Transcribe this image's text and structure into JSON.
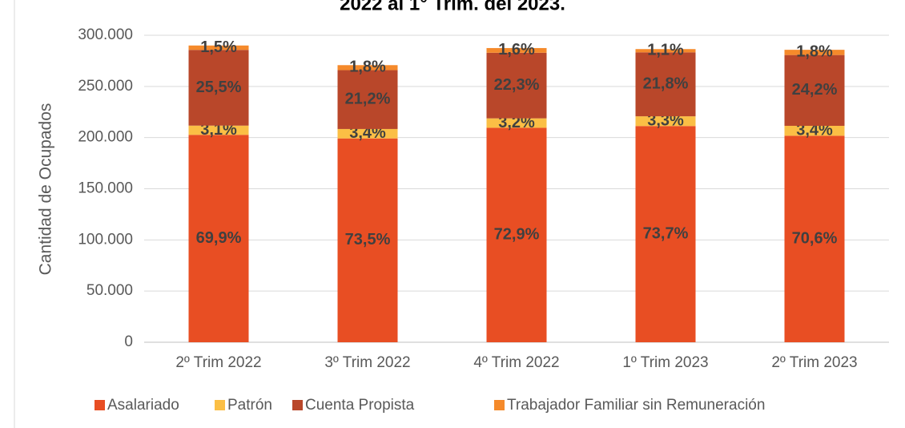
{
  "chart_data": {
    "type": "stacked_bar",
    "title": "2022 al 1° Trim. del 2023.",
    "y_label": "Cantidad de Ocupados",
    "categories": [
      "2º Trim 2022",
      "3º Trim 2022",
      "4º Trim 2022",
      "1º Trim 2023",
      "2º Trim 2023"
    ],
    "series": [
      {
        "name": "Asalariado",
        "color": "#e84e23",
        "values": [
          202700,
          199200,
          209600,
          211300,
          201800
        ],
        "value_labels": [
          "69,9%",
          "73,5%",
          "72,9%",
          "73,7%",
          "70,6%"
        ]
      },
      {
        "name": "Patrón",
        "color": "#fbbf45",
        "values": [
          9000,
          9200,
          9200,
          9500,
          9700
        ],
        "value_labels": [
          "3,1%",
          "3,4%",
          "3,2%",
          "3,3%",
          "3,4%"
        ]
      },
      {
        "name": "Cuenta Propista",
        "color": "#b9472a",
        "values": [
          74000,
          57500,
          64100,
          62500,
          69200
        ],
        "value_labels": [
          "25,5%",
          "21,2%",
          "22,3%",
          "21,8%",
          "24,2%"
        ]
      },
      {
        "name": "Trabajador Familiar sin Remuneración",
        "color": "#f58a2b",
        "values": [
          4300,
          4900,
          4600,
          3200,
          5100
        ],
        "value_labels": [
          "1,5%",
          "1,8%",
          "1,6%",
          "1,1%",
          "1,8%"
        ]
      }
    ],
    "ylim": [
      0,
      300000
    ],
    "yticks": [
      0,
      {
        "value": 50000,
        "label": "50.000"
      },
      {
        "value": 100000,
        "label": "100.000"
      },
      {
        "value": 150000,
        "label": "150.000"
      },
      {
        "value": 200000,
        "label": "200.000"
      },
      {
        "value": 250000,
        "label": "250.000"
      },
      {
        "value": 300000,
        "label": "300.000"
      }
    ],
    "grid": true,
    "legend": "bottom"
  }
}
